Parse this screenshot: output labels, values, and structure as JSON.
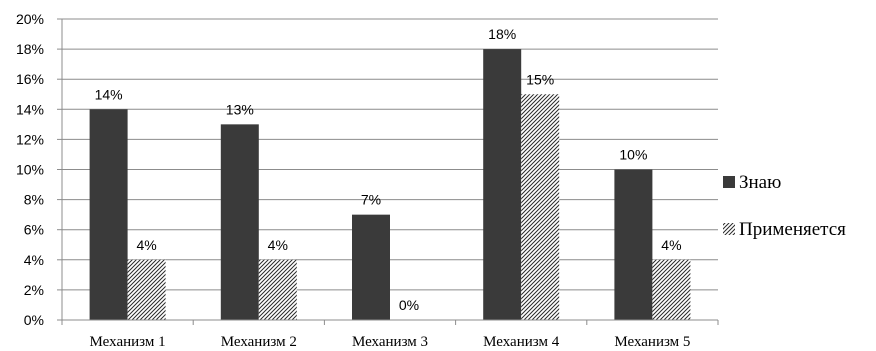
{
  "chart_data": {
    "type": "bar",
    "categories": [
      "Механизм 1",
      "Механизм 2",
      "Механизм 3",
      "Механизм 4",
      "Механизм 5"
    ],
    "series": [
      {
        "name": "Знаю",
        "values": [
          14,
          13,
          7,
          18,
          10
        ],
        "color": "#3a3a3a",
        "pattern": "solid"
      },
      {
        "name": "Применяется",
        "values": [
          4,
          4,
          0,
          15,
          4
        ],
        "color": "#ffffff",
        "pattern": "diagonal-hatch"
      }
    ],
    "value_suffix": "%",
    "ylim": [
      0,
      20
    ],
    "ytick_step": 2,
    "grid": "horizontal",
    "legend_position": "right",
    "title": "",
    "xlabel": "",
    "ylabel": ""
  }
}
